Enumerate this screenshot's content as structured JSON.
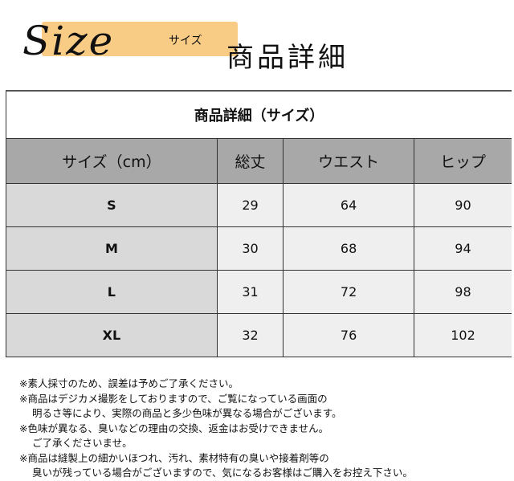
{
  "header": {
    "logo": "Size",
    "sub": "サイズ",
    "title": "商品詳細",
    "highlight_color": "#f9cc85"
  },
  "table": {
    "caption": "商品詳細（サイズ）",
    "columns": [
      "サイズ（cm）",
      "総丈",
      "ウエスト",
      "ヒップ"
    ],
    "rows": [
      [
        "S",
        "29",
        "64",
        "90"
      ],
      [
        "M",
        "30",
        "68",
        "94"
      ],
      [
        "L",
        "31",
        "72",
        "98"
      ],
      [
        "XL",
        "32",
        "76",
        "102"
      ]
    ]
  },
  "notes": [
    "※素人採寸のため、誤差は予めご了承ください。",
    "※商品はデジカメ撮影をしておりますので、ご覧になっている画面の",
    "明るさ等により、実際の商品と多少色味が異なる場合がございます。",
    "※色味が異なる、臭いなどの理由の交換、返金はお受けできません。",
    "ご了承くださいませ。",
    "※商品は縫製上の細かいほつれ、汚れ、素材特有の臭いや接着剤等の",
    "臭いが残っている場合がございますので、気になるお客様はご購入をお控え下さい。"
  ]
}
